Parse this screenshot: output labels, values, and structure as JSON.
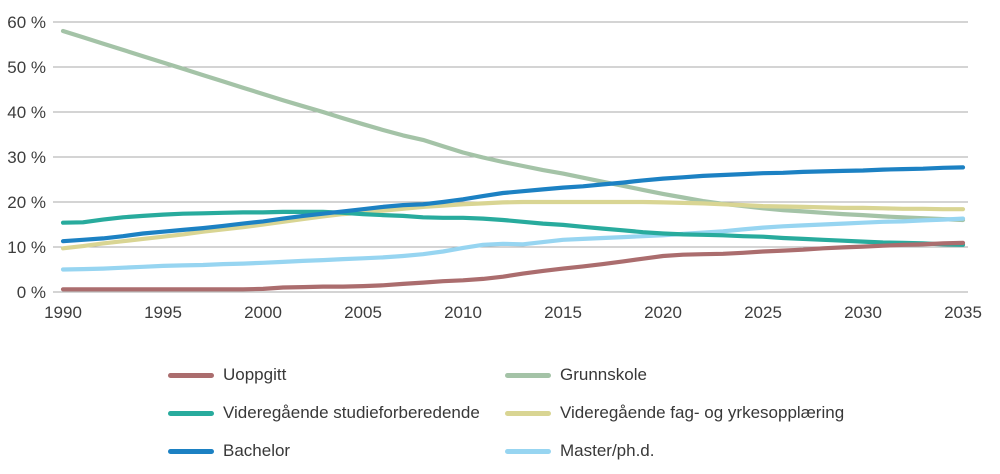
{
  "figure": {
    "background": "#ffffff"
  },
  "colors": {
    "grid": "#a8a8a8",
    "axis_text": "#3d3d3d",
    "legend_text": "#383838"
  },
  "chart_data": {
    "type": "line",
    "title": "",
    "xlabel": "",
    "ylabel": "",
    "x_start": 1990,
    "x_end": 2035,
    "x_step": 1,
    "x_tick_years": [
      1990,
      1995,
      2000,
      2005,
      2010,
      2015,
      2020,
      2025,
      2030,
      2035
    ],
    "x_tick_labels": [
      "1990",
      "1995",
      "2000",
      "2005",
      "2010",
      "2015",
      "2020",
      "2025",
      "2030",
      "2035"
    ],
    "y_tick_values": [
      0,
      10,
      20,
      30,
      40,
      50,
      60
    ],
    "y_tick_labels": [
      "0 %",
      "10 %",
      "20 %",
      "30 %",
      "40 %",
      "50 %",
      "60 %"
    ],
    "ylim": [
      0,
      60
    ],
    "grid": "horizontal-only",
    "legend_position": "bottom-two-columns",
    "series": [
      {
        "name": "Uoppgitt",
        "color": "#ab6d6e",
        "values": [
          0.6,
          0.6,
          0.6,
          0.6,
          0.6,
          0.6,
          0.6,
          0.6,
          0.6,
          0.6,
          0.7,
          1.0,
          1.1,
          1.2,
          1.2,
          1.3,
          1.5,
          1.8,
          2.1,
          2.4,
          2.6,
          2.9,
          3.4,
          4.1,
          4.7,
          5.2,
          5.7,
          6.2,
          6.8,
          7.4,
          8.0,
          8.3,
          8.4,
          8.5,
          8.7,
          9.0,
          9.2,
          9.4,
          9.7,
          9.9,
          10.1,
          10.3,
          10.5,
          10.6,
          10.8,
          10.9
        ]
      },
      {
        "name": "Grunnskole",
        "color": "#a4c3a7",
        "values": [
          58.0,
          56.6,
          55.2,
          53.8,
          52.4,
          51.0,
          49.6,
          48.2,
          46.8,
          45.4,
          44.0,
          42.6,
          41.3,
          40.0,
          38.6,
          37.3,
          36.0,
          34.8,
          33.8,
          32.4,
          31.0,
          29.9,
          28.9,
          28.0,
          27.1,
          26.3,
          25.4,
          24.5,
          23.6,
          22.7,
          21.8,
          21.0,
          20.2,
          19.6,
          19.1,
          18.6,
          18.2,
          17.9,
          17.6,
          17.3,
          17.1,
          16.8,
          16.6,
          16.4,
          16.2,
          16.0
        ]
      },
      {
        "name": "Videregående studieforberedende",
        "color": "#28ab9d",
        "values": [
          15.4,
          15.5,
          16.1,
          16.6,
          16.9,
          17.2,
          17.4,
          17.5,
          17.6,
          17.7,
          17.7,
          17.8,
          17.8,
          17.8,
          17.6,
          17.3,
          17.1,
          16.9,
          16.6,
          16.5,
          16.5,
          16.3,
          16.0,
          15.6,
          15.2,
          14.9,
          14.5,
          14.1,
          13.7,
          13.3,
          13.0,
          12.8,
          12.7,
          12.6,
          12.4,
          12.3,
          12.0,
          11.8,
          11.6,
          11.4,
          11.2,
          11.0,
          10.9,
          10.8,
          10.6,
          10.5
        ]
      },
      {
        "name": "Videregående fag- og yrkesopplæring",
        "color": "#d9d593",
        "values": [
          9.7,
          10.2,
          10.8,
          11.3,
          11.8,
          12.3,
          12.8,
          13.4,
          13.9,
          14.4,
          15.0,
          15.6,
          16.2,
          16.8,
          17.3,
          17.7,
          18.1,
          18.5,
          18.9,
          19.2,
          19.5,
          19.7,
          19.9,
          20.0,
          20.0,
          20.0,
          20.0,
          20.0,
          20.0,
          20.0,
          19.9,
          19.8,
          19.7,
          19.5,
          19.3,
          19.1,
          19.0,
          18.9,
          18.8,
          18.7,
          18.7,
          18.6,
          18.5,
          18.5,
          18.4,
          18.4
        ]
      },
      {
        "name": "Bachelor",
        "color": "#1c81c3",
        "values": [
          11.3,
          11.6,
          11.9,
          12.4,
          13.0,
          13.4,
          13.8,
          14.2,
          14.7,
          15.2,
          15.7,
          16.3,
          16.9,
          17.4,
          17.9,
          18.4,
          18.9,
          19.3,
          19.5,
          20.0,
          20.6,
          21.3,
          22.0,
          22.4,
          22.8,
          23.2,
          23.5,
          23.9,
          24.3,
          24.8,
          25.2,
          25.5,
          25.8,
          26.0,
          26.2,
          26.4,
          26.5,
          26.7,
          26.8,
          26.9,
          27.0,
          27.2,
          27.3,
          27.4,
          27.6,
          27.7
        ]
      },
      {
        "name": "Master/ph.d.",
        "color": "#97d5f1",
        "values": [
          5.0,
          5.1,
          5.2,
          5.4,
          5.6,
          5.8,
          5.9,
          6.0,
          6.2,
          6.3,
          6.5,
          6.7,
          6.9,
          7.1,
          7.3,
          7.5,
          7.7,
          8.0,
          8.4,
          9.0,
          9.8,
          10.5,
          10.7,
          10.6,
          11.1,
          11.6,
          11.8,
          12.0,
          12.2,
          12.4,
          12.6,
          12.9,
          13.2,
          13.5,
          13.9,
          14.3,
          14.6,
          14.8,
          15.0,
          15.2,
          15.4,
          15.6,
          15.7,
          15.9,
          16.1,
          16.3
        ]
      }
    ],
    "draw_order": [
      1,
      3,
      5,
      2,
      0,
      4
    ]
  },
  "legend": {
    "columns": [
      {
        "series_indices": [
          0,
          2,
          4
        ]
      },
      {
        "series_indices": [
          1,
          3,
          5
        ]
      }
    ]
  }
}
